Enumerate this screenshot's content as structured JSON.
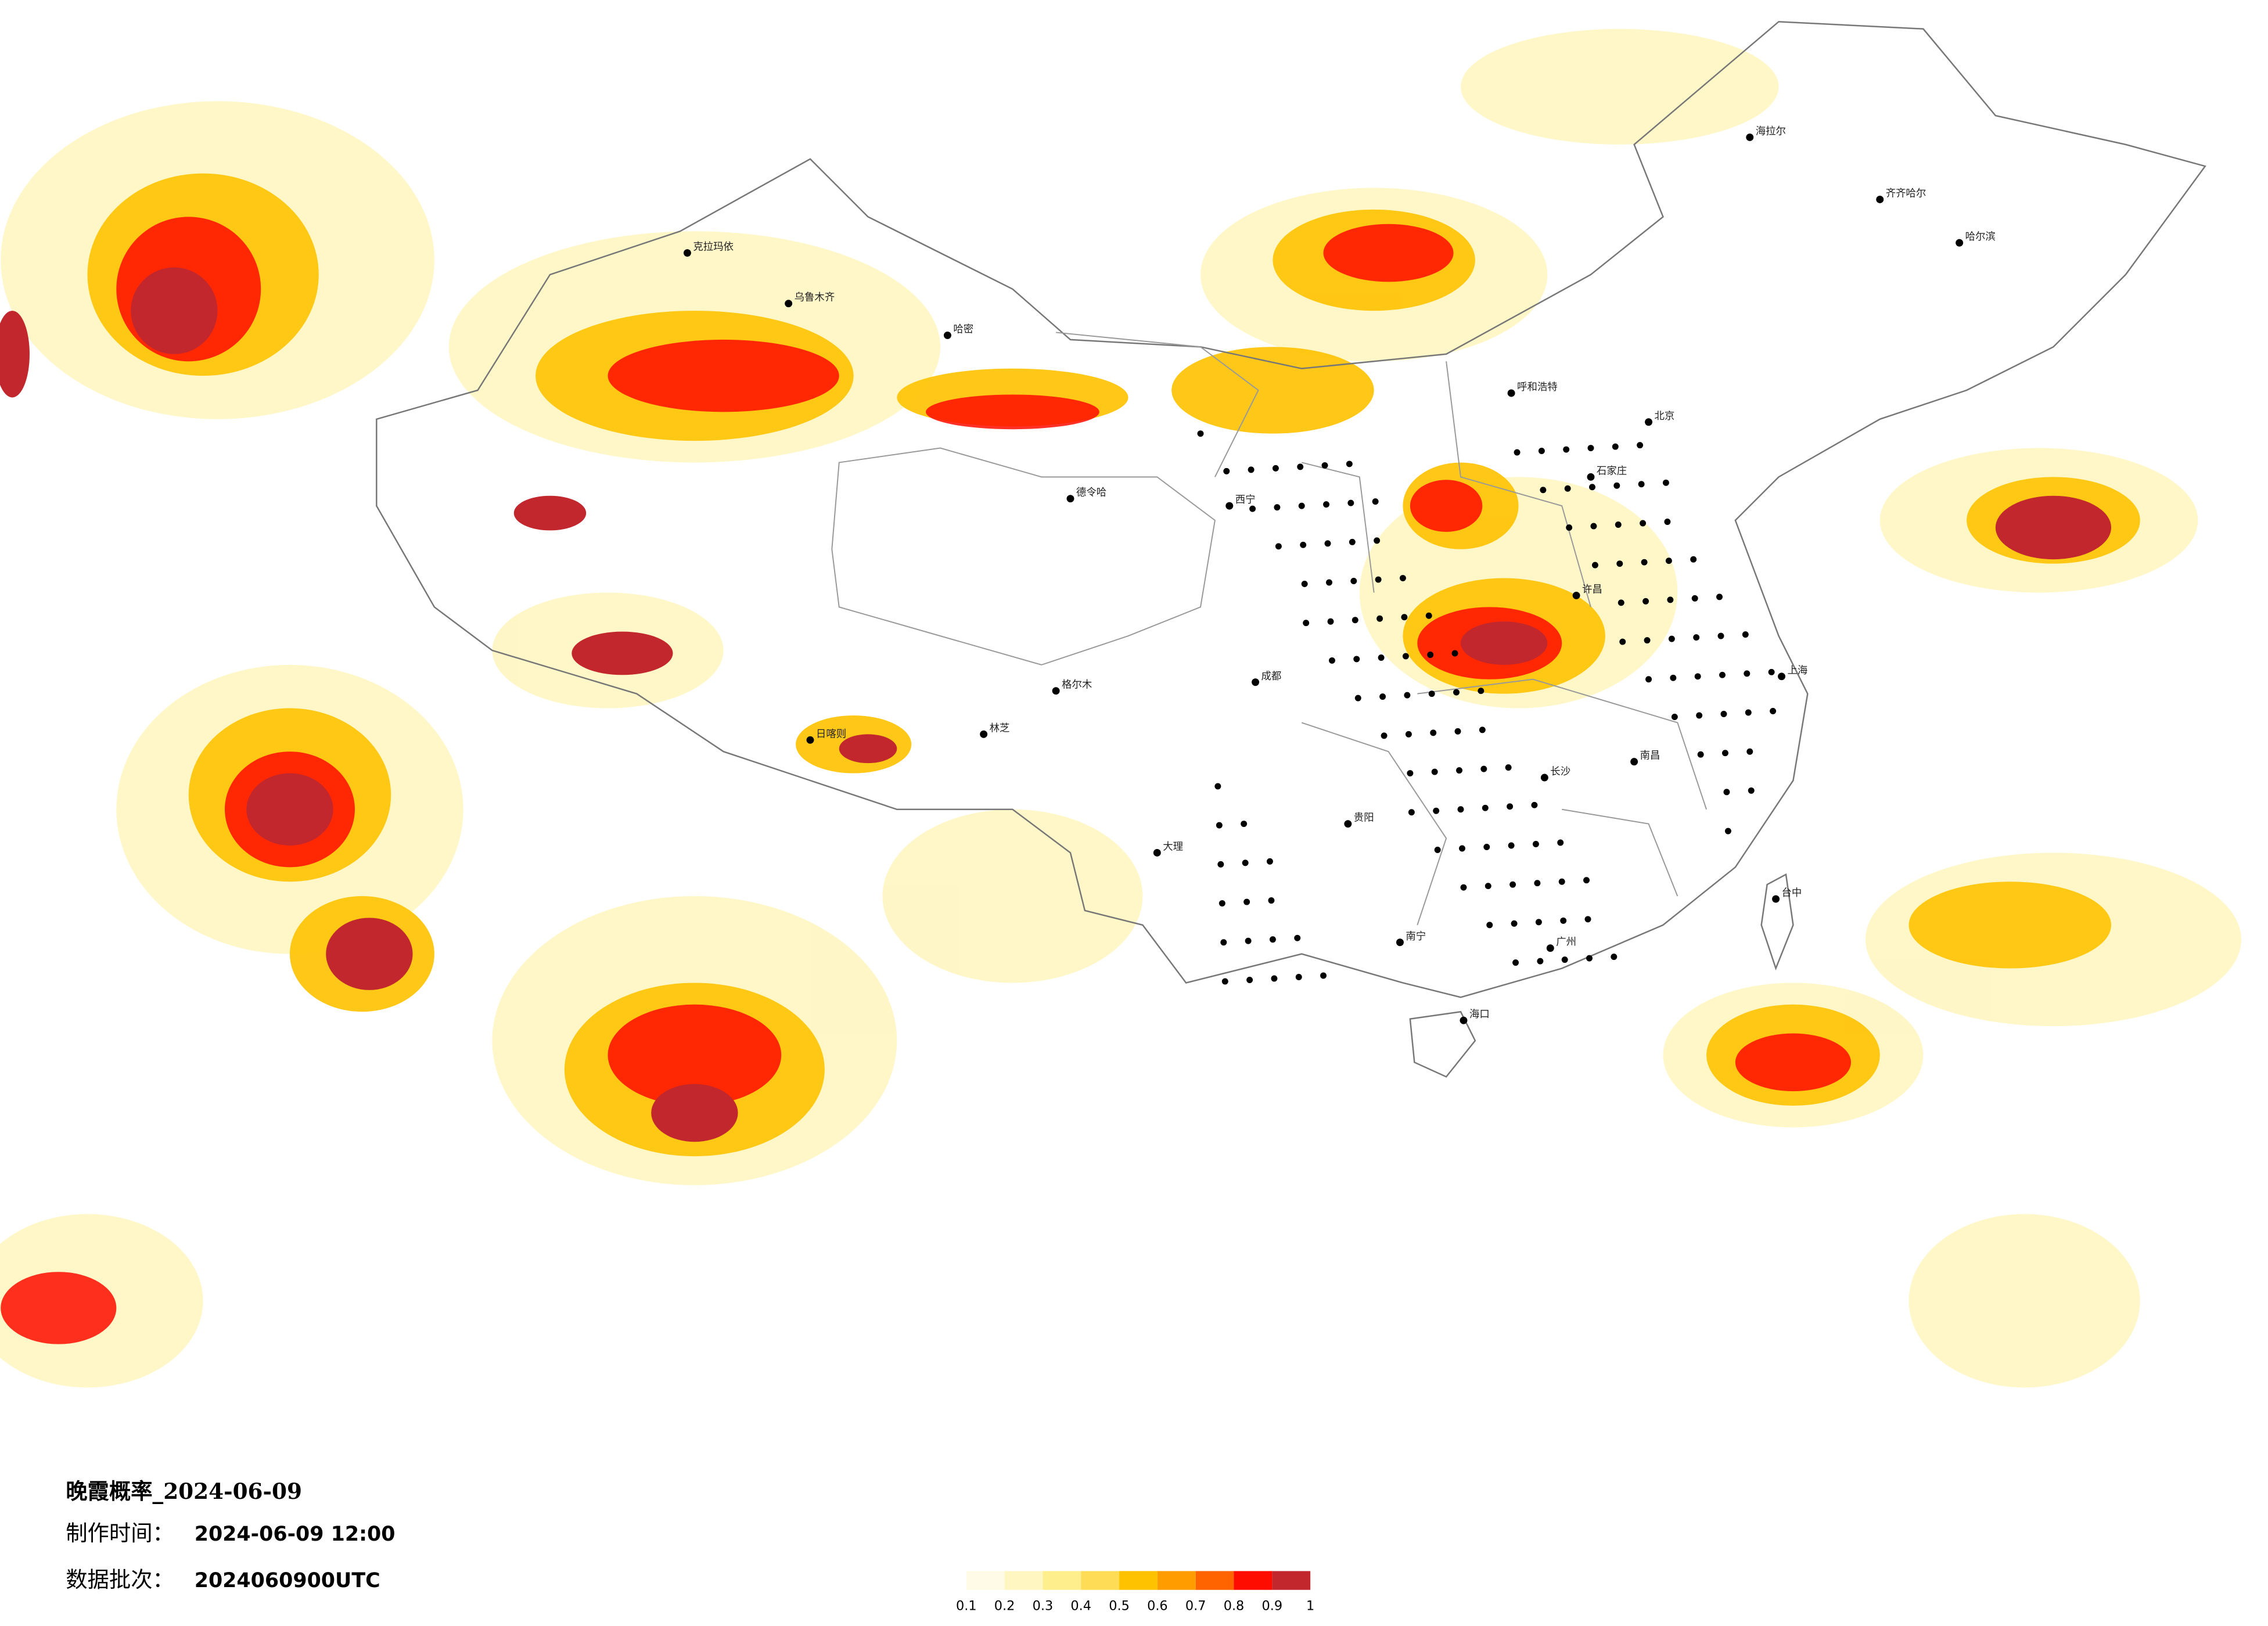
{
  "header": {
    "title": "晚霞概率_2024-06-09",
    "made_label": "制作时间：",
    "made_value": "2024-06-09 12:00",
    "batch_label": "数据批次：",
    "batch_value": "2024060900UTC"
  },
  "legend": {
    "colors": [
      "#fffbe6",
      "#fff6c2",
      "#ffee8c",
      "#ffdc55",
      "#ffc200",
      "#ff9c00",
      "#ff6400",
      "#ff0c00",
      "#c1272d"
    ],
    "ticks": [
      0.1,
      0.2,
      0.3,
      0.4,
      0.5,
      0.6,
      0.7,
      0.8,
      0.9,
      1
    ]
  },
  "cities": [
    "克拉玛依",
    "乌鲁木齐",
    "哈密",
    "德令哈",
    "日喀则",
    "林芝",
    "海拉尔",
    "齐齐哈尔",
    "哈尔滨",
    "呼和浩特",
    "北京",
    "石家庄",
    "许昌",
    "南昌",
    "长沙",
    "贵阳",
    "南宁",
    "海口",
    "台中",
    "西宁",
    "成都",
    "上海",
    "广州",
    "大理",
    "格尔木"
  ]
}
